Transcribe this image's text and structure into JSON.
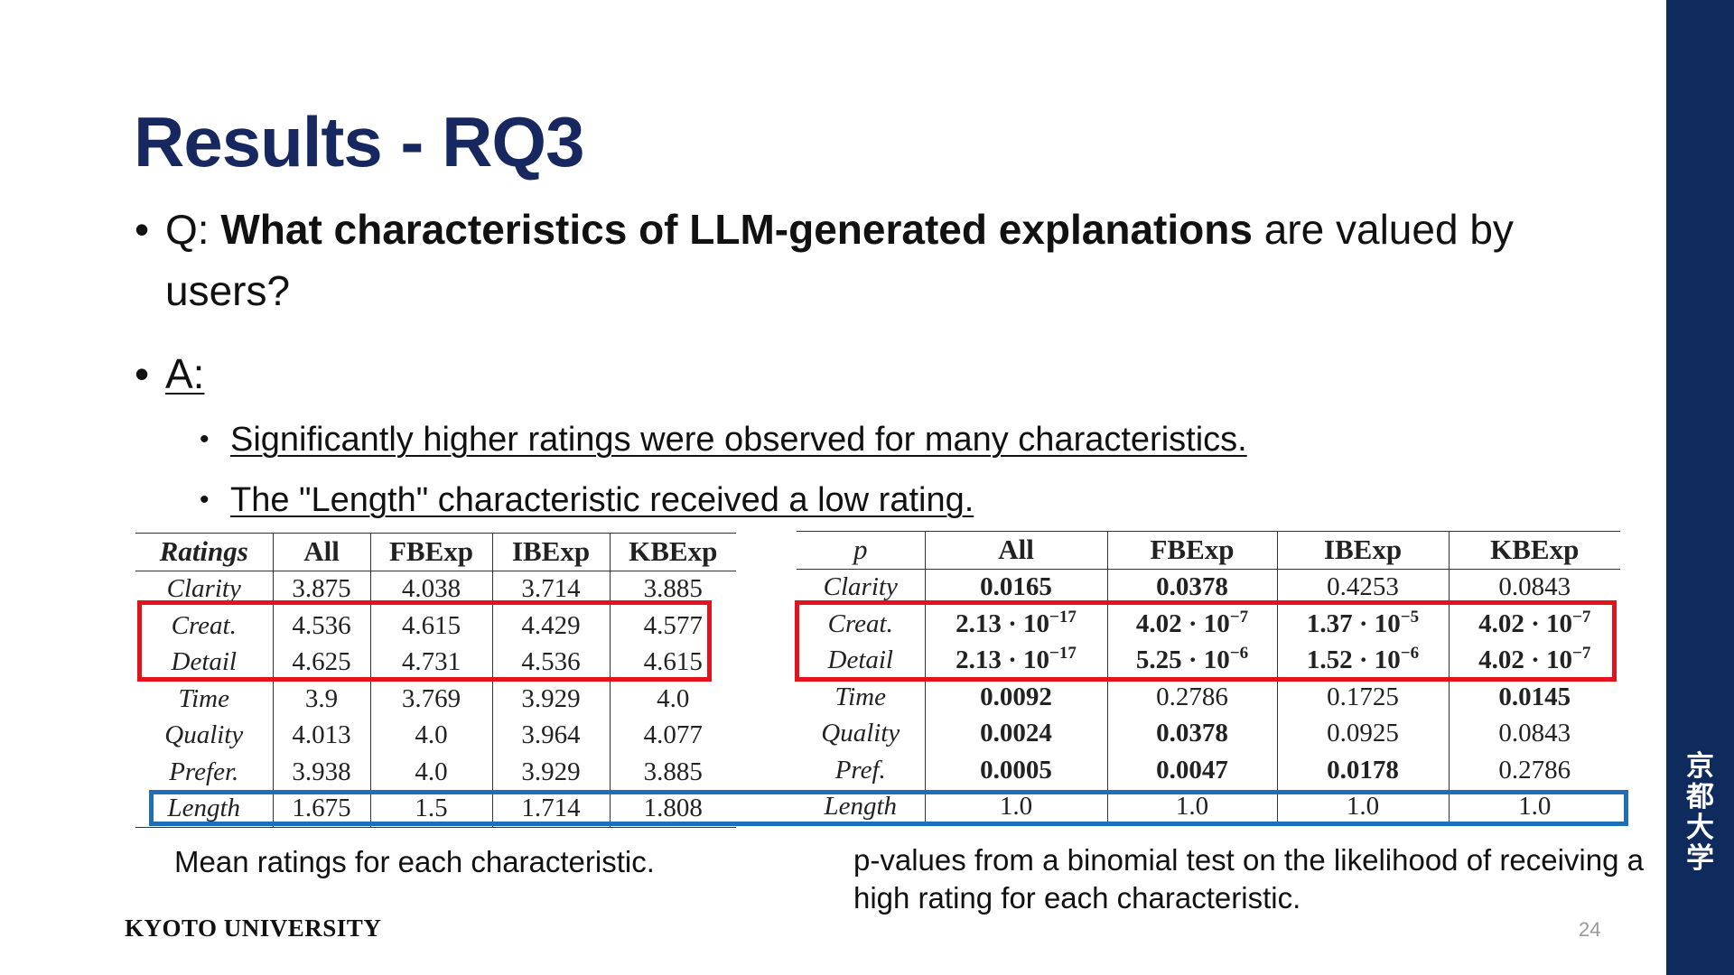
{
  "title": "Results - RQ3",
  "question": {
    "bullet": "•",
    "prefix": "Q: ",
    "bold": "What characteristics of LLM-generated explanations",
    "suffix": " are valued by users?"
  },
  "answer": {
    "bullet": "•",
    "label": "A:",
    "items": [
      {
        "bullet": "•",
        "text": "Significantly higher ratings were observed for many characteristics."
      },
      {
        "bullet": "•",
        "text": "The \"Length\" characteristic received a low rating."
      }
    ]
  },
  "ratings_table": {
    "headers": [
      "Ratings",
      "All",
      "FBExp",
      "IBExp",
      "KBExp"
    ],
    "rows": [
      {
        "label": "Clarity",
        "values": [
          "3.875",
          "4.038",
          "3.714",
          "3.885"
        ]
      },
      {
        "label": "Creat.",
        "values": [
          "4.536",
          "4.615",
          "4.429",
          "4.577"
        ]
      },
      {
        "label": "Detail",
        "values": [
          "4.625",
          "4.731",
          "4.536",
          "4.615"
        ]
      },
      {
        "label": "Time",
        "values": [
          "3.9",
          "3.769",
          "3.929",
          "4.0"
        ]
      },
      {
        "label": "Quality",
        "values": [
          "4.013",
          "4.0",
          "3.964",
          "4.077"
        ]
      },
      {
        "label": "Prefer.",
        "values": [
          "3.938",
          "4.0",
          "3.929",
          "3.885"
        ]
      },
      {
        "label": "Length",
        "values": [
          "1.675",
          "1.5",
          "1.714",
          "1.808"
        ]
      }
    ],
    "caption": "Mean ratings for each characteristic."
  },
  "pvalue_table": {
    "headers": [
      "p",
      "All",
      "FBExp",
      "IBExp",
      "KBExp"
    ],
    "rows": [
      {
        "label": "Clarity",
        "values": [
          {
            "m": "0.0165",
            "bold": true
          },
          {
            "m": "0.0378",
            "bold": true
          },
          {
            "m": "0.4253",
            "bold": false
          },
          {
            "m": "0.0843",
            "bold": false
          }
        ]
      },
      {
        "label": "Creat.",
        "values": [
          {
            "m": "2.13 · 10",
            "e": "−17",
            "bold": true
          },
          {
            "m": "4.02 · 10",
            "e": "−7",
            "bold": true
          },
          {
            "m": "1.37 · 10",
            "e": "−5",
            "bold": true
          },
          {
            "m": "4.02 · 10",
            "e": "−7",
            "bold": true
          }
        ]
      },
      {
        "label": "Detail",
        "values": [
          {
            "m": "2.13 · 10",
            "e": "−17",
            "bold": true
          },
          {
            "m": "5.25 · 10",
            "e": "−6",
            "bold": true
          },
          {
            "m": "1.52 · 10",
            "e": "−6",
            "bold": true
          },
          {
            "m": "4.02 · 10",
            "e": "−7",
            "bold": true
          }
        ]
      },
      {
        "label": "Time",
        "values": [
          {
            "m": "0.0092",
            "bold": true
          },
          {
            "m": "0.2786",
            "bold": false
          },
          {
            "m": "0.1725",
            "bold": false
          },
          {
            "m": "0.0145",
            "bold": true
          }
        ]
      },
      {
        "label": "Quality",
        "values": [
          {
            "m": "0.0024",
            "bold": true
          },
          {
            "m": "0.0378",
            "bold": true
          },
          {
            "m": "0.0925",
            "bold": false
          },
          {
            "m": "0.0843",
            "bold": false
          }
        ]
      },
      {
        "label": "Pref.",
        "values": [
          {
            "m": "0.0005",
            "bold": true
          },
          {
            "m": "0.0047",
            "bold": true
          },
          {
            "m": "0.0178",
            "bold": true
          },
          {
            "m": "0.2786",
            "bold": false
          }
        ]
      },
      {
        "label": "Length",
        "values": [
          {
            "m": "1.0",
            "bold": false
          },
          {
            "m": "1.0",
            "bold": false
          },
          {
            "m": "1.0",
            "bold": false
          },
          {
            "m": "1.0",
            "bold": false
          }
        ]
      }
    ],
    "caption": "p-values from a binomial test on the likelihood of receiving a high rating for each characteristic."
  },
  "highlight_colors": {
    "red": "#e3131b",
    "blue": "#1f6fb8"
  },
  "brand_color": "#0f2a5c",
  "footer": {
    "logo": "KYOTO UNIVERSITY",
    "page_number": "24"
  },
  "side_label": [
    "京",
    "都",
    "大",
    "学"
  ]
}
